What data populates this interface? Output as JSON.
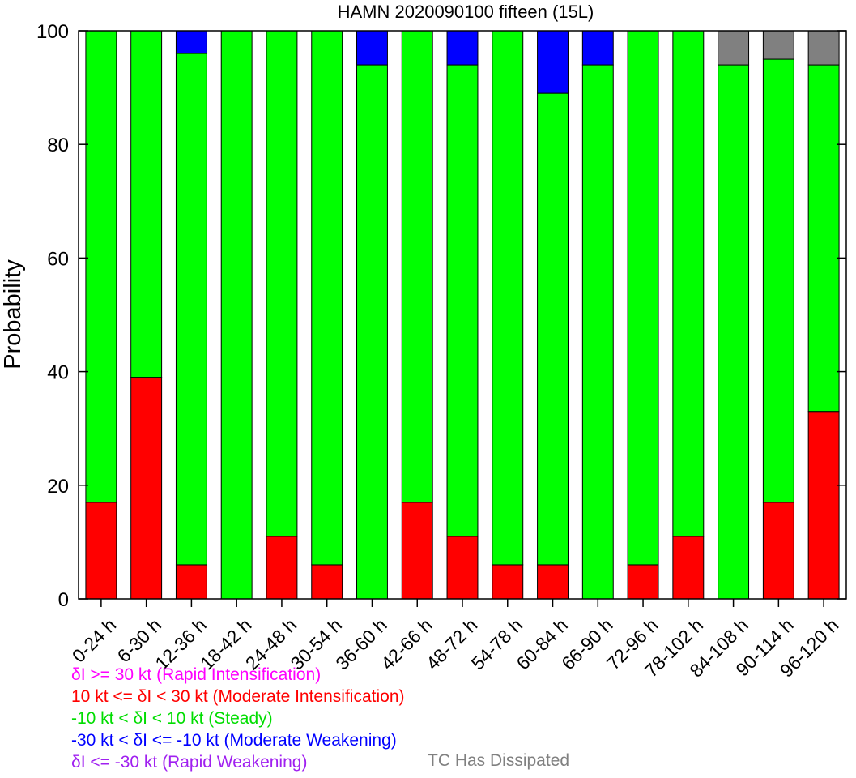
{
  "chart_data": {
    "type": "bar",
    "stacked": true,
    "title": "HAMN 2020090100 fifteen (15L)",
    "xlabel": "",
    "ylabel": "Probability",
    "ylim": [
      0,
      100
    ],
    "yticks": [
      0,
      20,
      40,
      60,
      80,
      100
    ],
    "grid": false,
    "categories": [
      "0-24 h",
      "6-30 h",
      "12-36 h",
      "18-42 h",
      "24-48 h",
      "30-54 h",
      "36-60 h",
      "42-66 h",
      "48-72 h",
      "54-78 h",
      "60-84 h",
      "66-90 h",
      "72-96 h",
      "78-102 h",
      "84-108 h",
      "90-114 h",
      "96-120 h"
    ],
    "series": [
      {
        "name": "Rapid Intensification",
        "color": "#ff00ff",
        "values": [
          0,
          0,
          0,
          0,
          0,
          0,
          0,
          0,
          0,
          0,
          0,
          0,
          0,
          0,
          0,
          0,
          0
        ]
      },
      {
        "name": "Moderate Intensification",
        "color": "#ff0000",
        "values": [
          17,
          39,
          6,
          0,
          11,
          6,
          0,
          17,
          11,
          6,
          6,
          0,
          6,
          11,
          0,
          17,
          33
        ]
      },
      {
        "name": "Steady",
        "color": "#00ff00",
        "values": [
          83,
          61,
          90,
          100,
          89,
          94,
          94,
          83,
          83,
          94,
          83,
          94,
          94,
          89,
          94,
          78,
          61
        ]
      },
      {
        "name": "Moderate Weakening",
        "color": "#0000ff",
        "values": [
          0,
          0,
          4,
          0,
          0,
          0,
          6,
          0,
          6,
          0,
          11,
          6,
          0,
          0,
          0,
          0,
          0
        ]
      },
      {
        "name": "Rapid Weakening",
        "color": "#a020f0",
        "values": [
          0,
          0,
          0,
          0,
          0,
          0,
          0,
          0,
          0,
          0,
          0,
          0,
          0,
          0,
          0,
          0,
          0
        ]
      },
      {
        "name": "TC Has Dissipated",
        "color": "#808080",
        "values": [
          0,
          0,
          0,
          0,
          0,
          0,
          0,
          0,
          0,
          0,
          0,
          0,
          0,
          0,
          6,
          5,
          6
        ]
      }
    ]
  },
  "legend": {
    "ri": {
      "text": "δI >= 30 kt (Rapid Intensification)",
      "color": "#ff00ff"
    },
    "mi": {
      "text": "10 kt <= δI < 30 kt (Moderate Intensification)",
      "color": "#ff0000"
    },
    "steady": {
      "text": "-10 kt < δI < 10 kt (Steady)",
      "color": "#00dd00"
    },
    "mw": {
      "text": "-30 kt < δI <= -10 kt (Moderate Weakening)",
      "color": "#0000ff"
    },
    "rw": {
      "text": "δI <= -30 kt (Rapid Weakening)",
      "color": "#a020f0"
    },
    "dissipated": {
      "text": "TC Has Dissipated",
      "color": "#808080"
    }
  }
}
